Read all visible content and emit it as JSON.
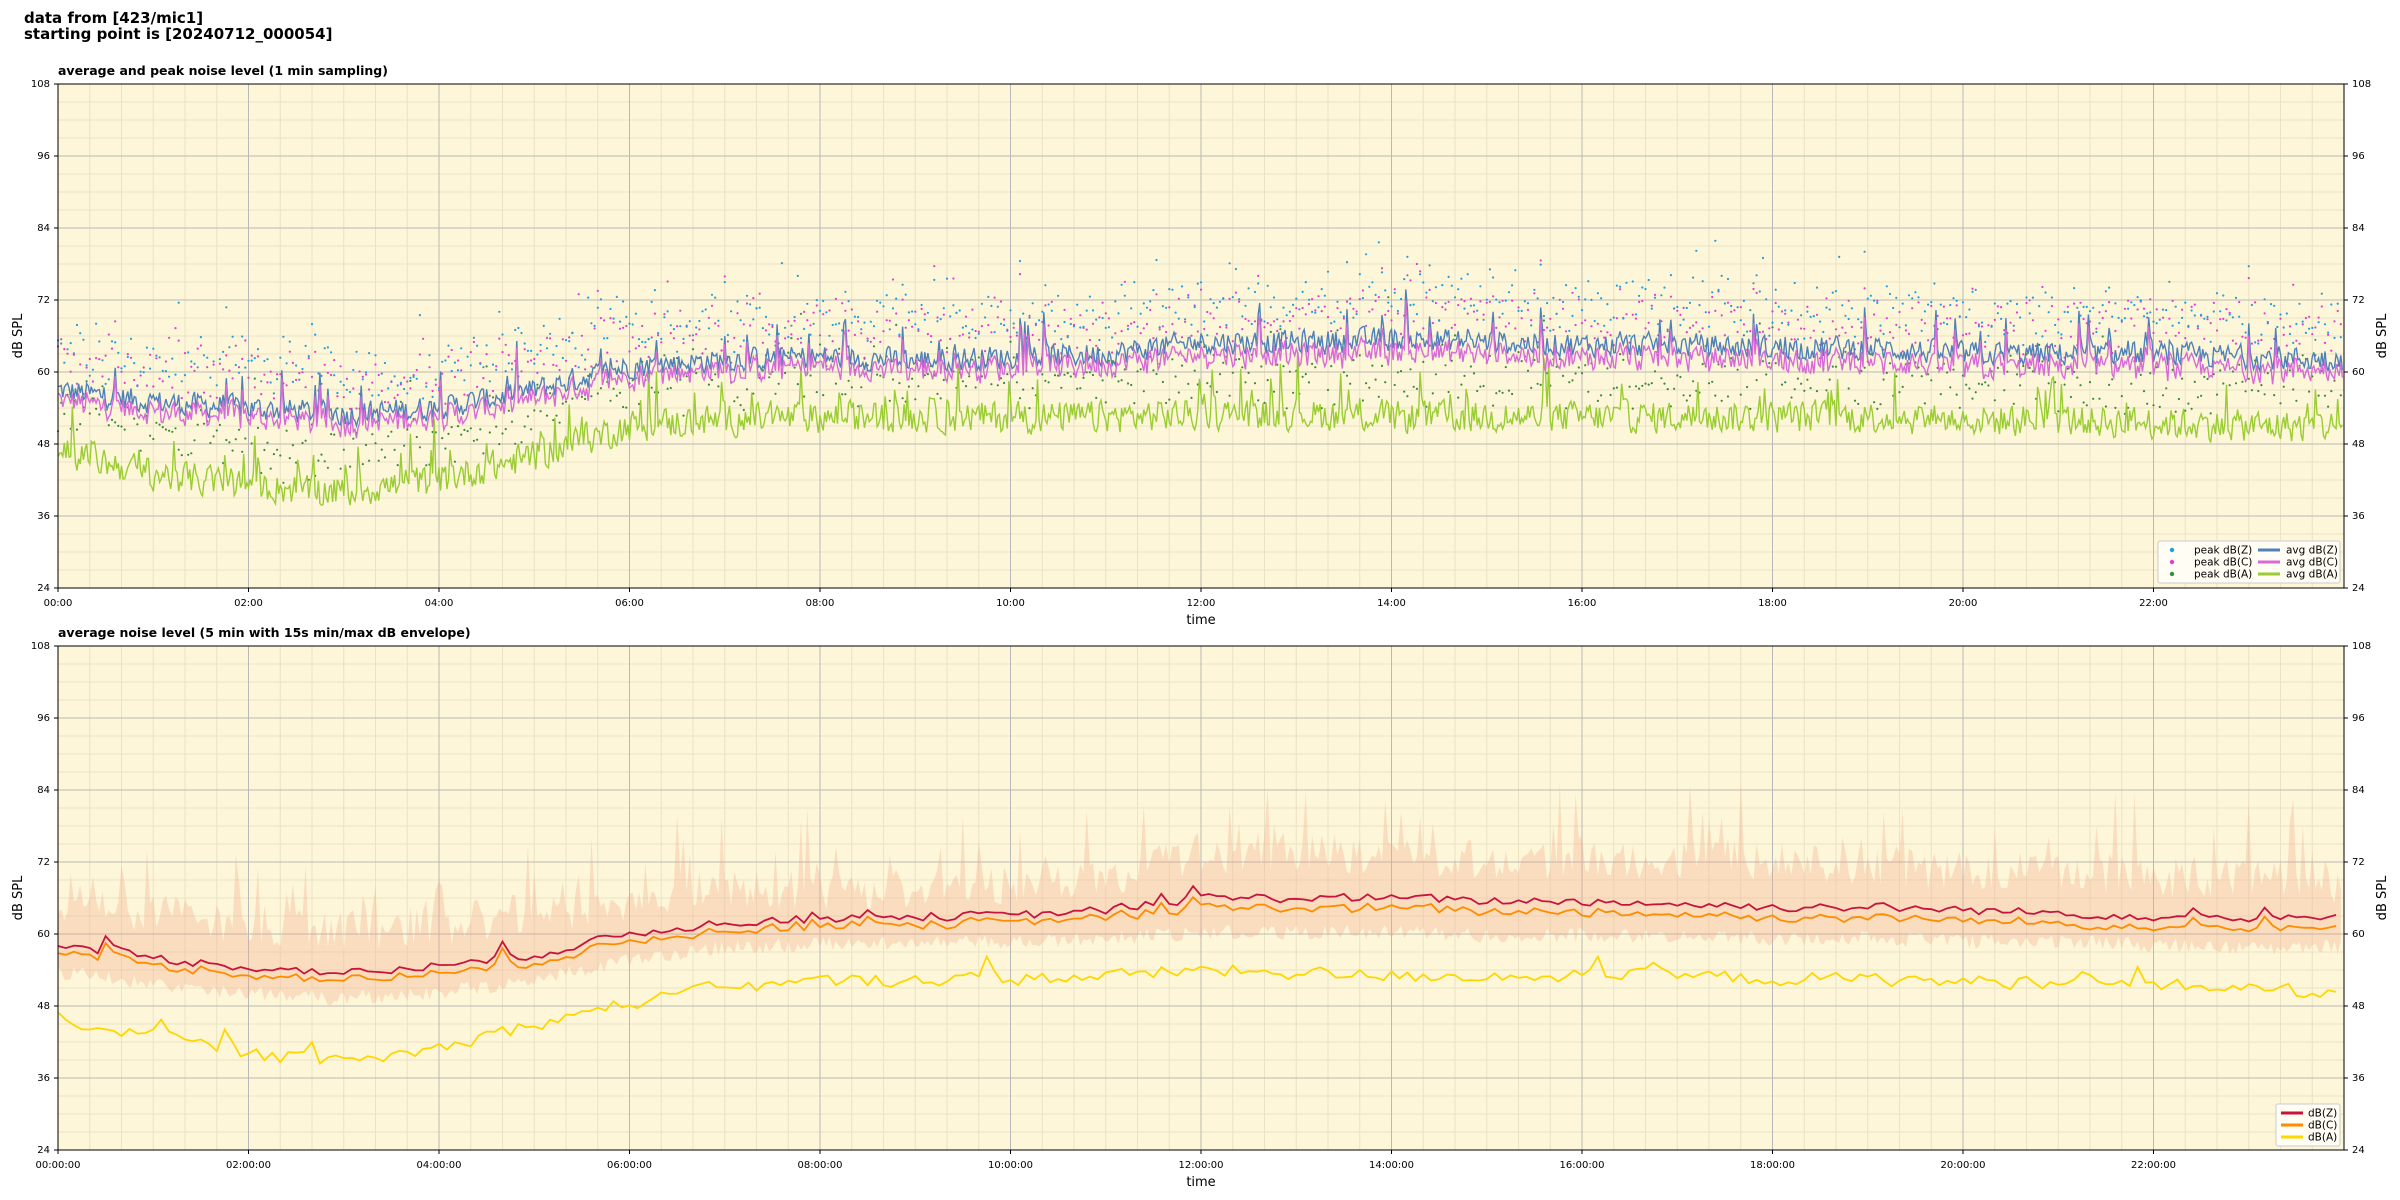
{
  "header": {
    "line1": "data from [423/mic1]",
    "line2": "starting point is [20240712_000054]"
  },
  "colors": {
    "plot_background": "#fdf6d8",
    "grid_major": "#b9b9b9",
    "grid_minor": "#ece2c4",
    "peak_z": "#1f9ee0",
    "peak_c": "#e43bd0",
    "peak_a": "#3c8a3c",
    "avg_z": "#4f81b8",
    "avg_c": "#d86ad8",
    "avg_a": "#9acd32",
    "dbz": "#c8143c",
    "dbc": "#ff8c00",
    "dba": "#ffd700",
    "envelope": "#f4a78a"
  },
  "chart_data": [
    {
      "type": "line",
      "title": "average and peak noise level (1 min sampling)",
      "xlabel": "time",
      "ylabel": "dB SPL",
      "ylim": [
        24,
        108
      ],
      "xlim_minutes": [
        0,
        1440
      ],
      "y_ticks": [
        "24",
        "36",
        "48",
        "60",
        "72",
        "84",
        "96",
        "108"
      ],
      "x_ticks": [
        "00:00",
        "02:00",
        "04:00",
        "06:00",
        "08:00",
        "10:00",
        "12:00",
        "14:00",
        "16:00",
        "18:00",
        "20:00",
        "22:00"
      ],
      "grid": true,
      "legend_position": "lower-right",
      "legend_columns": 2,
      "series": [
        {
          "name": "peak dB(Z)",
          "style": "points",
          "color": "#1f9ee0",
          "offset_from": "avg dB(Z)"
        },
        {
          "name": "peak dB(C)",
          "style": "points",
          "color": "#e43bd0",
          "offset_from": "avg dB(C)"
        },
        {
          "name": "peak dB(A)",
          "style": "points",
          "color": "#3c8a3c",
          "offset_from": "avg dB(A)"
        },
        {
          "name": "avg dB(Z)",
          "style": "line",
          "color": "#4f81b8"
        },
        {
          "name": "avg dB(C)",
          "style": "line",
          "color": "#d86ad8"
        },
        {
          "name": "avg dB(A)",
          "style": "line",
          "color": "#9acd32"
        }
      ],
      "trend_time_minutes": [
        0,
        60,
        120,
        180,
        240,
        300,
        360,
        420,
        480,
        540,
        600,
        660,
        720,
        780,
        840,
        900,
        960,
        1020,
        1080,
        1140,
        1200,
        1260,
        1320,
        1380,
        1439
      ],
      "avg_dbz_trend": [
        57,
        55,
        54,
        53,
        54,
        57,
        61,
        62,
        62.5,
        62,
        62.5,
        63,
        65,
        65,
        65.5,
        65,
        64.5,
        64.5,
        64,
        64,
        63,
        63,
        63,
        62.5,
        62
      ],
      "avg_dbc_trend": [
        56,
        54,
        53,
        52,
        53,
        56,
        60,
        61,
        61.5,
        61,
        61.5,
        62,
        63.5,
        63.5,
        64,
        63.5,
        63,
        63,
        62.5,
        62.5,
        61.5,
        61.5,
        61.5,
        61,
        61
      ],
      "avg_dba_trend": [
        47,
        43,
        41,
        40,
        42,
        46,
        51,
        52,
        52.5,
        52.5,
        52.5,
        52.5,
        53,
        53,
        52.5,
        52.5,
        52.5,
        52.5,
        52.5,
        52.5,
        52,
        52,
        51.5,
        51,
        51
      ],
      "peak_offset_db": [
        3,
        10
      ]
    },
    {
      "type": "line",
      "title": "average noise level (5 min with 15s min/max dB envelope)",
      "xlabel": "time",
      "ylabel": "dB SPL",
      "ylim": [
        24,
        108
      ],
      "xlim_minutes": [
        0,
        1440
      ],
      "y_ticks": [
        "24",
        "36",
        "48",
        "60",
        "72",
        "84",
        "96",
        "108"
      ],
      "x_ticks": [
        "00:00:00",
        "02:00:00",
        "04:00:00",
        "06:00:00",
        "08:00:00",
        "10:00:00",
        "12:00:00",
        "14:00:00",
        "16:00:00",
        "18:00:00",
        "20:00:00",
        "22:00:00"
      ],
      "grid": true,
      "legend_position": "lower-right",
      "legend_columns": 1,
      "series": [
        {
          "name": "dB(Z)",
          "style": "line",
          "color": "#c8143c"
        },
        {
          "name": "dB(C)",
          "style": "line",
          "color": "#ff8c00"
        },
        {
          "name": "dB(A)",
          "style": "line",
          "color": "#ffd700"
        }
      ],
      "trend_time_minutes": [
        0,
        60,
        120,
        180,
        240,
        300,
        360,
        420,
        480,
        540,
        600,
        660,
        720,
        780,
        840,
        900,
        960,
        1020,
        1080,
        1140,
        1200,
        1260,
        1320,
        1380,
        1439
      ],
      "dbz_trend": [
        58.5,
        56,
        54.5,
        53.5,
        54.5,
        56.5,
        60,
        62,
        62.5,
        63,
        63,
        64,
        66,
        66,
        66,
        65.5,
        65.5,
        65,
        64.5,
        64.5,
        64,
        63.5,
        63,
        62.5,
        62.5
      ],
      "dbc_trend": [
        57.5,
        55,
        53.5,
        52.5,
        53.5,
        55.5,
        59,
        61,
        61.5,
        62,
        62,
        63,
        64.5,
        64.5,
        64.5,
        64,
        64,
        63.5,
        63,
        63,
        62.5,
        62,
        61.5,
        61,
        61
      ],
      "dba_trend": [
        46,
        43,
        40,
        38.5,
        41,
        45,
        48.5,
        51,
        52,
        52.5,
        52.5,
        53,
        54,
        53.5,
        53,
        53,
        53,
        53,
        52.5,
        52.5,
        52,
        52,
        51.5,
        51,
        50
      ],
      "envelope_min_trend": [
        55,
        53,
        51.5,
        50.5,
        51.5,
        53.5,
        57,
        59,
        59.5,
        60,
        60,
        60.5,
        61.5,
        61.5,
        61.5,
        61,
        61,
        61,
        60.5,
        60.5,
        60,
        60,
        59.5,
        59,
        59
      ],
      "envelope_max_trend": [
        68,
        66,
        64,
        63,
        64,
        66,
        68,
        70,
        70,
        70,
        71,
        72,
        76,
        76,
        76,
        75,
        75,
        75,
        75,
        74,
        73,
        73,
        72,
        72,
        71
      ]
    }
  ]
}
